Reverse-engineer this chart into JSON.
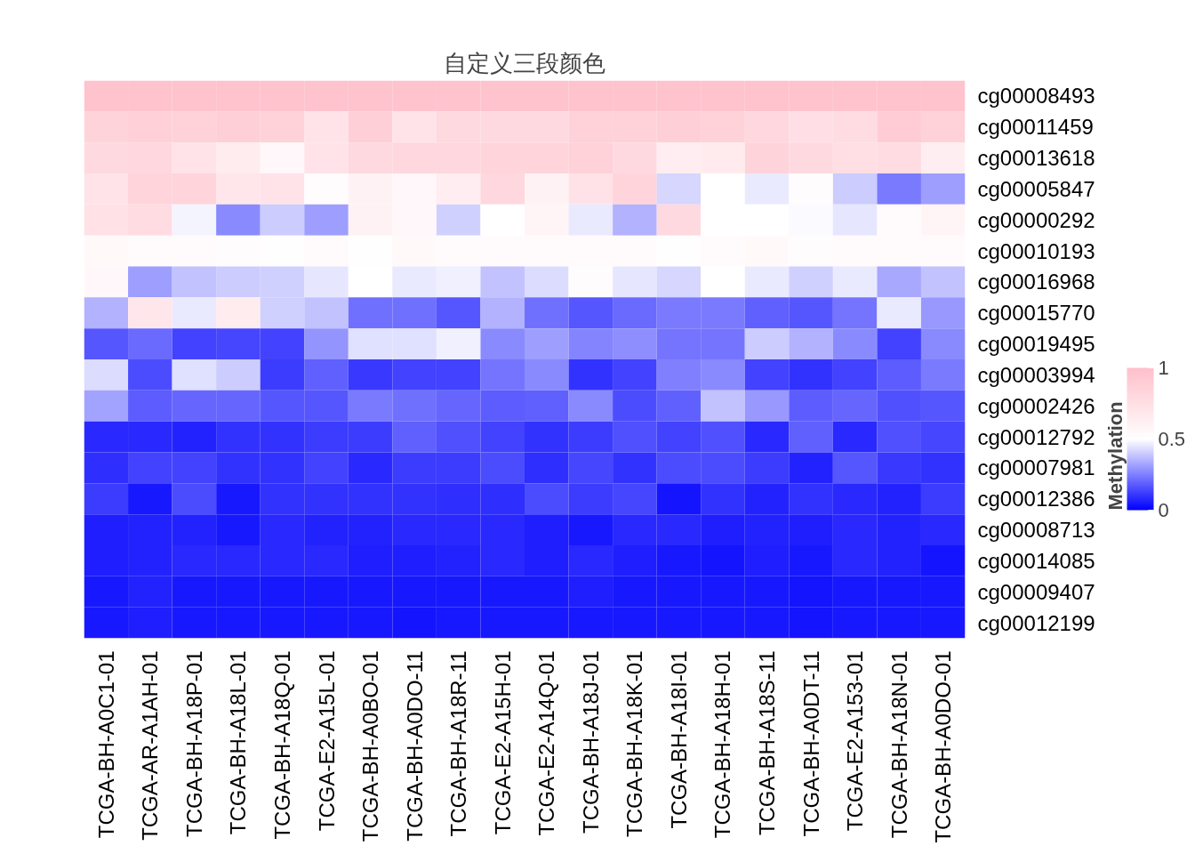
{
  "chart_data": {
    "type": "heatmap",
    "title": "自定义三段颜色",
    "clabel": "Methylation",
    "categories": [
      "TCGA-BH-A0C1-01",
      "TCGA-AR-A1AH-01",
      "TCGA-BH-A18P-01",
      "TCGA-BH-A18L-01",
      "TCGA-BH-A18Q-01",
      "TCGA-E2-A15L-01",
      "TCGA-BH-A0BO-01",
      "TCGA-BH-A0DO-11",
      "TCGA-BH-A18R-11",
      "TCGA-E2-A15H-01",
      "TCGA-E2-A14Q-01",
      "TCGA-BH-A18J-01",
      "TCGA-BH-A18K-01",
      "TCGA-BH-A18I-01",
      "TCGA-BH-A18H-01",
      "TCGA-BH-A18S-11",
      "TCGA-BH-A0DT-11",
      "TCGA-E2-A153-01",
      "TCGA-BH-A18N-01",
      "TCGA-BH-A0DO-01"
    ],
    "y_categories": [
      "cg00008493",
      "cg00011459",
      "cg00013618",
      "cg00005847",
      "cg00000292",
      "cg00010193",
      "cg00016968",
      "cg00015770",
      "cg00019495",
      "cg00003994",
      "cg00002426",
      "cg00012792",
      "cg00007981",
      "cg00012386",
      "cg00008713",
      "cg00014085",
      "cg00009407",
      "cg00012199"
    ],
    "cells": [
      [
        0.97,
        0.97,
        0.97,
        0.97,
        0.97,
        0.97,
        0.97,
        0.97,
        0.97,
        0.97,
        0.97,
        0.97,
        0.97,
        0.97,
        0.97,
        0.97,
        0.97,
        0.97,
        0.97,
        0.97
      ],
      [
        0.85,
        0.87,
        0.86,
        0.88,
        0.86,
        0.72,
        0.88,
        0.72,
        0.8,
        0.8,
        0.8,
        0.86,
        0.86,
        0.88,
        0.86,
        0.82,
        0.75,
        0.78,
        0.9,
        0.86
      ],
      [
        0.8,
        0.82,
        0.72,
        0.65,
        0.56,
        0.72,
        0.8,
        0.82,
        0.82,
        0.84,
        0.84,
        0.86,
        0.8,
        0.64,
        0.66,
        0.85,
        0.8,
        0.76,
        0.78,
        0.63
      ],
      [
        0.72,
        0.84,
        0.84,
        0.7,
        0.72,
        0.52,
        0.6,
        0.56,
        0.64,
        0.82,
        0.6,
        0.73,
        0.84,
        0.42,
        0.5,
        0.46,
        0.52,
        0.4,
        0.24,
        0.31
      ],
      [
        0.74,
        0.78,
        0.48,
        0.27,
        0.4,
        0.31,
        0.6,
        0.56,
        0.41,
        0.5,
        0.58,
        0.46,
        0.35,
        0.8,
        0.5,
        0.5,
        0.49,
        0.45,
        0.53,
        0.58
      ],
      [
        0.55,
        0.53,
        0.54,
        0.52,
        0.51,
        0.54,
        0.51,
        0.55,
        0.53,
        0.53,
        0.54,
        0.54,
        0.53,
        0.51,
        0.53,
        0.55,
        0.52,
        0.54,
        0.54,
        0.54
      ],
      [
        0.56,
        0.31,
        0.38,
        0.4,
        0.41,
        0.45,
        0.5,
        0.46,
        0.47,
        0.38,
        0.43,
        0.52,
        0.45,
        0.42,
        0.5,
        0.46,
        0.41,
        0.46,
        0.33,
        0.38
      ],
      [
        0.35,
        0.7,
        0.46,
        0.65,
        0.41,
        0.38,
        0.22,
        0.22,
        0.17,
        0.35,
        0.22,
        0.17,
        0.21,
        0.24,
        0.24,
        0.19,
        0.17,
        0.23,
        0.46,
        0.3
      ],
      [
        0.17,
        0.21,
        0.13,
        0.14,
        0.13,
        0.29,
        0.44,
        0.44,
        0.47,
        0.27,
        0.31,
        0.26,
        0.28,
        0.23,
        0.23,
        0.4,
        0.35,
        0.27,
        0.13,
        0.27
      ],
      [
        0.43,
        0.15,
        0.44,
        0.4,
        0.12,
        0.19,
        0.11,
        0.13,
        0.13,
        0.23,
        0.27,
        0.1,
        0.13,
        0.25,
        0.27,
        0.13,
        0.1,
        0.13,
        0.18,
        0.24
      ],
      [
        0.32,
        0.18,
        0.2,
        0.2,
        0.17,
        0.17,
        0.24,
        0.22,
        0.2,
        0.18,
        0.19,
        0.27,
        0.15,
        0.19,
        0.38,
        0.3,
        0.18,
        0.2,
        0.16,
        0.17
      ],
      [
        0.08,
        0.08,
        0.07,
        0.1,
        0.1,
        0.12,
        0.12,
        0.19,
        0.16,
        0.13,
        0.1,
        0.12,
        0.16,
        0.13,
        0.16,
        0.08,
        0.19,
        0.08,
        0.16,
        0.14
      ],
      [
        0.09,
        0.13,
        0.13,
        0.1,
        0.1,
        0.13,
        0.08,
        0.12,
        0.12,
        0.15,
        0.09,
        0.14,
        0.1,
        0.15,
        0.15,
        0.12,
        0.07,
        0.17,
        0.11,
        0.1
      ],
      [
        0.12,
        0.05,
        0.15,
        0.05,
        0.1,
        0.1,
        0.1,
        0.1,
        0.09,
        0.09,
        0.15,
        0.12,
        0.14,
        0.04,
        0.1,
        0.07,
        0.1,
        0.08,
        0.07,
        0.12
      ],
      [
        0.06,
        0.07,
        0.07,
        0.05,
        0.08,
        0.07,
        0.07,
        0.08,
        0.08,
        0.08,
        0.06,
        0.05,
        0.08,
        0.08,
        0.06,
        0.07,
        0.06,
        0.08,
        0.07,
        0.08
      ],
      [
        0.06,
        0.07,
        0.08,
        0.08,
        0.08,
        0.08,
        0.06,
        0.06,
        0.07,
        0.08,
        0.06,
        0.08,
        0.06,
        0.05,
        0.04,
        0.06,
        0.05,
        0.08,
        0.07,
        0.04
      ],
      [
        0.05,
        0.07,
        0.05,
        0.05,
        0.05,
        0.05,
        0.05,
        0.05,
        0.05,
        0.05,
        0.05,
        0.06,
        0.05,
        0.05,
        0.05,
        0.05,
        0.04,
        0.05,
        0.05,
        0.05
      ],
      [
        0.05,
        0.06,
        0.05,
        0.05,
        0.05,
        0.05,
        0.05,
        0.04,
        0.05,
        0.05,
        0.05,
        0.05,
        0.05,
        0.05,
        0.05,
        0.05,
        0.04,
        0.05,
        0.05,
        0.05
      ]
    ],
    "colors": [
      "#0000ff",
      "#ffffff",
      "#ffc0cb"
    ],
    "clim": [
      0,
      1
    ],
    "cticks": [
      0,
      0.5,
      1
    ]
  }
}
